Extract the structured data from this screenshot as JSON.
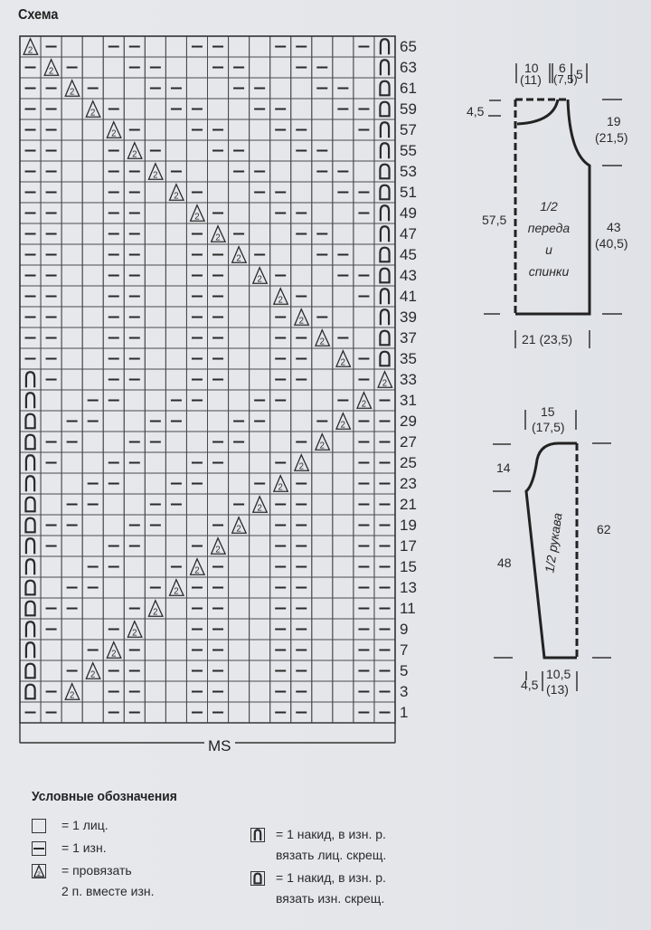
{
  "title": "Схема",
  "chart": {
    "columns": 18,
    "symbol_key": {
      ".": "knit",
      "-": "purl",
      "A": "p2tog",
      "n": "yo-knit-tbl",
      "d": "yo-purl-tbl"
    },
    "row_numbers": [
      "65",
      "63",
      "61",
      "59",
      "57",
      "55",
      "53",
      "51",
      "49",
      "47",
      "45",
      "43",
      "41",
      "39",
      "37",
      "35",
      "33",
      "31",
      "29",
      "27",
      "25",
      "23",
      "21",
      "19",
      "17",
      "15",
      "13",
      "11",
      "9",
      "7",
      "5",
      "3",
      "1"
    ],
    "rows": [
      "A-..--..--..--..-n",
      "-A-..--..--..--..n",
      "--A-..--..--..--.d",
      "--.A-..--..--..--d",
      "--..A-..--..--..-n",
      "--..-A-..--..--..n",
      "--..--A-..--..--.d",
      "--..--.A-..--..--d",
      "--..--..A-..--..-n",
      "--..--..-A-..--..n",
      "--..--..--A-..--.d",
      "--..--..--.A-..--d",
      "--..--..--..A-..-n",
      "--..--..--..-A-..n",
      "--..--..--..--A-.d",
      "--..--..--..--.A-d",
      "n-..--..--..--..-A",
      "n..--..--..--..-A-",
      "d.--..--..--..-A--",
      "d--..--..--..-A.--",
      "n-..--..--..-A..--",
      "n..--..--..-A-..--",
      "d.--..--..-A--..--",
      "d--..--..-A.--..--",
      "n-..--..-A..--..--",
      "n..--..-A-..--..--",
      "d.--..-A--..--..--",
      "d--..-A.--..--..--",
      "n-..-A..--..--..--",
      "n..-A-..--..--..--",
      "d.-A--..--..--..--",
      "d-A.--..--..--..--",
      "--..--..--..--..--"
    ],
    "footer_label": "MS"
  },
  "body_schematic": {
    "top_left": "10",
    "top_left_alt": "(11)",
    "top_mid": "6",
    "top_mid_alt": "(7,5)",
    "top_right": "5",
    "neck_depth": "4,5",
    "armhole": "19",
    "armhole_alt": "(21,5)",
    "total_height": "57,5",
    "side": "43",
    "side_alt": "(40,5)",
    "bottom": "21 (23,5)",
    "caption": [
      "1/2",
      "переда",
      "и",
      "спинки"
    ]
  },
  "sleeve_schematic": {
    "top": "15",
    "top_alt": "(17,5)",
    "cap": "14",
    "length": "48",
    "total": "62",
    "caption": "1/2 рукава",
    "bottom_left": "4,5",
    "bottom": "10,5",
    "bottom_alt": "(13)"
  },
  "legend": {
    "title": "Условные обозначения",
    "items": [
      {
        "symbol": ".",
        "line1": "= 1 лиц.",
        "line2": ""
      },
      {
        "symbol": "-",
        "line1": "= 1 изн.",
        "line2": ""
      },
      {
        "symbol": "A",
        "line1": "= провязать",
        "line2": "2 п. вместе изн."
      },
      {
        "symbol": "n",
        "line1": "= 1 накид, в изн. р.",
        "line2": "вязать лиц. скрещ."
      },
      {
        "symbol": "d",
        "line1": "= 1 накид, в изн. р.",
        "line2": "вязать изн. скрещ."
      }
    ]
  },
  "colors": {
    "ink": "#2a2a2a",
    "grid": "#4a4a4a",
    "paper": "#e6e7eb"
  }
}
